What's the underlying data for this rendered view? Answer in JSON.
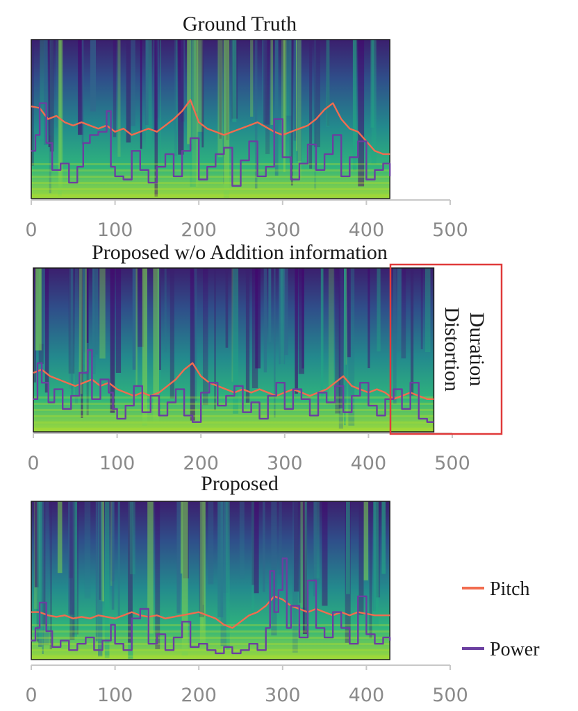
{
  "chart_data": [
    {
      "type": "line",
      "title": "Ground Truth",
      "background": "mel-spectrogram",
      "xlim": [
        0,
        500
      ],
      "x_ticks": [
        "0",
        "100",
        "200",
        "300",
        "400",
        "500"
      ],
      "data_x_max": 428,
      "series": [
        {
          "name": "Pitch",
          "x": [
            0,
            10,
            20,
            30,
            40,
            50,
            60,
            70,
            80,
            90,
            100,
            110,
            120,
            130,
            140,
            150,
            160,
            170,
            180,
            190,
            200,
            210,
            220,
            230,
            240,
            250,
            260,
            270,
            280,
            290,
            300,
            310,
            320,
            330,
            340,
            350,
            360,
            370,
            380,
            390,
            400,
            410,
            420,
            428
          ],
          "y": [
            0.58,
            0.57,
            0.5,
            0.52,
            0.48,
            0.46,
            0.48,
            0.46,
            0.44,
            0.46,
            0.42,
            0.44,
            0.4,
            0.42,
            0.44,
            0.42,
            0.46,
            0.5,
            0.55,
            0.62,
            0.48,
            0.44,
            0.42,
            0.4,
            0.42,
            0.44,
            0.46,
            0.48,
            0.45,
            0.42,
            0.4,
            0.42,
            0.44,
            0.46,
            0.5,
            0.56,
            0.6,
            0.5,
            0.44,
            0.42,
            0.36,
            0.3,
            0.28,
            0.28
          ]
        },
        {
          "name": "Power",
          "x": [
            0,
            5,
            10,
            18,
            25,
            35,
            45,
            55,
            62,
            70,
            80,
            90,
            95,
            100,
            110,
            120,
            130,
            140,
            150,
            160,
            170,
            180,
            190,
            200,
            210,
            220,
            230,
            240,
            250,
            260,
            270,
            280,
            290,
            300,
            310,
            320,
            330,
            340,
            350,
            360,
            370,
            380,
            390,
            400,
            410,
            420,
            428
          ],
          "y": [
            0.3,
            0.4,
            0.6,
            0.35,
            0.18,
            0.22,
            0.1,
            0.2,
            0.35,
            0.4,
            0.42,
            0.55,
            0.2,
            0.14,
            0.12,
            0.3,
            0.18,
            0.1,
            0.2,
            0.28,
            0.14,
            0.3,
            0.38,
            0.12,
            0.2,
            0.28,
            0.32,
            0.08,
            0.24,
            0.36,
            0.14,
            0.2,
            0.5,
            0.26,
            0.12,
            0.22,
            0.34,
            0.18,
            0.28,
            0.4,
            0.14,
            0.26,
            0.36,
            0.12,
            0.18,
            0.22,
            0.14
          ]
        }
      ]
    },
    {
      "type": "line",
      "title": "Proposed w/o Addition information",
      "background": "mel-spectrogram",
      "xlim": [
        0,
        500
      ],
      "x_ticks": [
        "0",
        "100",
        "200",
        "300",
        "400",
        "500"
      ],
      "data_x_max": 478,
      "annotation": {
        "line1": "Duration",
        "line2": "Distortion",
        "x_range": [
          425,
          555
        ],
        "color": "#e03a3a"
      },
      "series": [
        {
          "name": "Pitch",
          "x": [
            0,
            10,
            20,
            30,
            40,
            50,
            60,
            70,
            80,
            90,
            100,
            110,
            120,
            130,
            140,
            150,
            160,
            170,
            180,
            190,
            200,
            210,
            220,
            230,
            240,
            250,
            260,
            270,
            280,
            290,
            300,
            310,
            320,
            330,
            340,
            350,
            360,
            370,
            380,
            390,
            400,
            410,
            420,
            430,
            440,
            450,
            460,
            470,
            478
          ],
          "y": [
            0.36,
            0.38,
            0.34,
            0.32,
            0.3,
            0.28,
            0.3,
            0.32,
            0.28,
            0.3,
            0.26,
            0.24,
            0.22,
            0.24,
            0.22,
            0.24,
            0.28,
            0.32,
            0.38,
            0.42,
            0.34,
            0.3,
            0.28,
            0.26,
            0.24,
            0.26,
            0.24,
            0.26,
            0.24,
            0.22,
            0.24,
            0.26,
            0.24,
            0.22,
            0.24,
            0.26,
            0.3,
            0.34,
            0.28,
            0.26,
            0.24,
            0.26,
            0.24,
            0.2,
            0.22,
            0.24,
            0.22,
            0.2,
            0.2
          ]
        },
        {
          "name": "Power",
          "x": [
            0,
            5,
            10,
            18,
            25,
            35,
            45,
            55,
            65,
            70,
            80,
            90,
            95,
            100,
            110,
            120,
            130,
            140,
            150,
            160,
            170,
            180,
            190,
            200,
            210,
            220,
            230,
            240,
            250,
            260,
            270,
            280,
            290,
            300,
            310,
            320,
            330,
            340,
            350,
            360,
            370,
            380,
            390,
            400,
            410,
            420,
            430,
            440,
            450,
            460,
            470,
            478
          ],
          "y": [
            0.2,
            0.42,
            0.3,
            0.18,
            0.26,
            0.14,
            0.22,
            0.36,
            0.5,
            0.2,
            0.32,
            0.24,
            0.14,
            0.08,
            0.16,
            0.28,
            0.12,
            0.22,
            0.1,
            0.18,
            0.26,
            0.1,
            0.06,
            0.24,
            0.3,
            0.16,
            0.22,
            0.28,
            0.12,
            0.18,
            0.08,
            0.22,
            0.3,
            0.14,
            0.26,
            0.2,
            0.1,
            0.24,
            0.18,
            0.28,
            0.12,
            0.22,
            0.3,
            0.16,
            0.1,
            0.2,
            0.26,
            0.14,
            0.3,
            0.08,
            0.06,
            0.06
          ]
        }
      ]
    },
    {
      "type": "line",
      "title": "Proposed",
      "background": "mel-spectrogram",
      "xlim": [
        0,
        500
      ],
      "x_ticks": [
        "0",
        "100",
        "200",
        "300",
        "400",
        "500"
      ],
      "data_x_max": 428,
      "series": [
        {
          "name": "Pitch",
          "x": [
            0,
            10,
            20,
            30,
            40,
            50,
            60,
            70,
            80,
            90,
            100,
            110,
            120,
            130,
            140,
            150,
            160,
            170,
            180,
            190,
            200,
            210,
            220,
            230,
            240,
            250,
            260,
            270,
            280,
            290,
            300,
            310,
            320,
            330,
            340,
            350,
            360,
            370,
            380,
            390,
            400,
            410,
            420,
            428
          ],
          "y": [
            0.3,
            0.3,
            0.28,
            0.27,
            0.28,
            0.26,
            0.27,
            0.26,
            0.28,
            0.27,
            0.26,
            0.28,
            0.3,
            0.28,
            0.27,
            0.28,
            0.26,
            0.27,
            0.28,
            0.29,
            0.3,
            0.28,
            0.26,
            0.22,
            0.2,
            0.24,
            0.28,
            0.3,
            0.34,
            0.4,
            0.38,
            0.34,
            0.32,
            0.3,
            0.32,
            0.3,
            0.28,
            0.3,
            0.28,
            0.3,
            0.29,
            0.28,
            0.28,
            0.28
          ]
        },
        {
          "name": "Power",
          "x": [
            0,
            5,
            10,
            18,
            25,
            35,
            45,
            55,
            65,
            75,
            85,
            95,
            100,
            110,
            120,
            130,
            140,
            150,
            160,
            170,
            180,
            190,
            200,
            210,
            220,
            230,
            240,
            250,
            260,
            270,
            280,
            285,
            290,
            295,
            300,
            305,
            310,
            320,
            330,
            340,
            350,
            360,
            370,
            380,
            390,
            400,
            410,
            420,
            428
          ],
          "y": [
            0.12,
            0.2,
            0.36,
            0.18,
            0.08,
            0.12,
            0.06,
            0.1,
            0.14,
            0.06,
            0.12,
            0.22,
            0.1,
            0.06,
            0.26,
            0.32,
            0.1,
            0.16,
            0.06,
            0.14,
            0.24,
            0.08,
            0.1,
            0.06,
            0.04,
            0.08,
            0.04,
            0.06,
            0.1,
            0.06,
            0.2,
            0.56,
            0.3,
            0.44,
            0.64,
            0.2,
            0.34,
            0.14,
            0.5,
            0.2,
            0.14,
            0.3,
            0.2,
            0.1,
            0.4,
            0.16,
            0.1,
            0.14,
            0.12
          ]
        }
      ]
    }
  ],
  "legend": {
    "entries": [
      {
        "label": "Pitch",
        "color": "#f26c4f"
      },
      {
        "label": "Power",
        "color": "#6b3fa0"
      }
    ]
  },
  "colors": {
    "axis": "#c8c8c8",
    "tick_text": "#8a8a8a",
    "frame": "#1a1a1a"
  }
}
